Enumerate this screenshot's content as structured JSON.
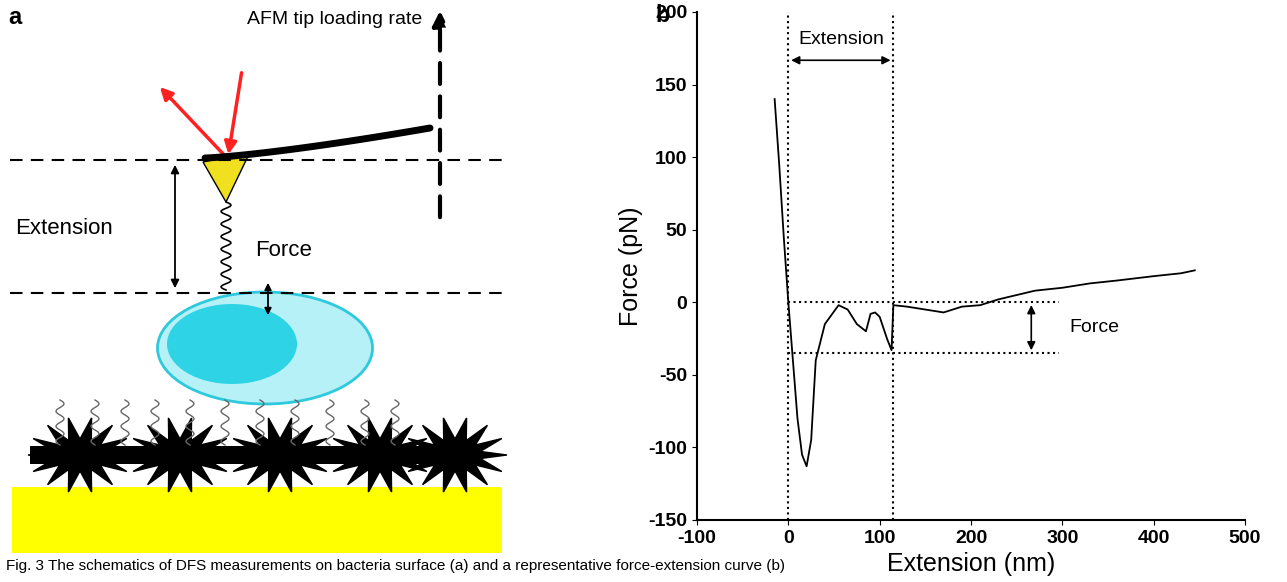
{
  "figure": {
    "caption": "Fig. 3 The schematics of DFS measurements on bacteria surface (a) and a representative force-extension curve (b)"
  },
  "panel_a": {
    "label": "a",
    "texts": {
      "loading_rate": "AFM tip loading rate",
      "extension": "Extension",
      "force": "Force"
    }
  },
  "chart_data": {
    "panel_label": "b",
    "type": "line",
    "x_label": "Extension (nm)",
    "y_label": "Force (pN)",
    "x": [
      -15,
      -10,
      -5,
      0,
      5,
      10,
      15,
      20,
      25,
      30,
      40,
      55,
      65,
      75,
      85,
      90,
      95,
      100,
      108,
      113,
      115,
      130,
      150,
      170,
      190,
      210,
      230,
      250,
      270,
      300,
      330,
      360,
      400,
      430,
      445
    ],
    "values": [
      140,
      95,
      45,
      0,
      -40,
      -80,
      -105,
      -113,
      -95,
      -40,
      -15,
      -2,
      -5,
      -15,
      -20,
      -8,
      -7,
      -10,
      -25,
      -33,
      -2,
      -3,
      -5,
      -7,
      -3,
      -2,
      2,
      5,
      8,
      10,
      13,
      15,
      18,
      20,
      22
    ],
    "color": "#000000",
    "xlim": [
      -100,
      500
    ],
    "ylim": [
      -150,
      200
    ],
    "xticks": [
      -100,
      0,
      100,
      200,
      300,
      400,
      500
    ],
    "yticks": [
      -150,
      -100,
      -50,
      0,
      50,
      100,
      150,
      200
    ],
    "reference_lines": {
      "x": [
        0,
        115
      ],
      "y": [
        0,
        -35
      ]
    },
    "annotations": {
      "extension": "Extension",
      "force": "Force"
    }
  }
}
